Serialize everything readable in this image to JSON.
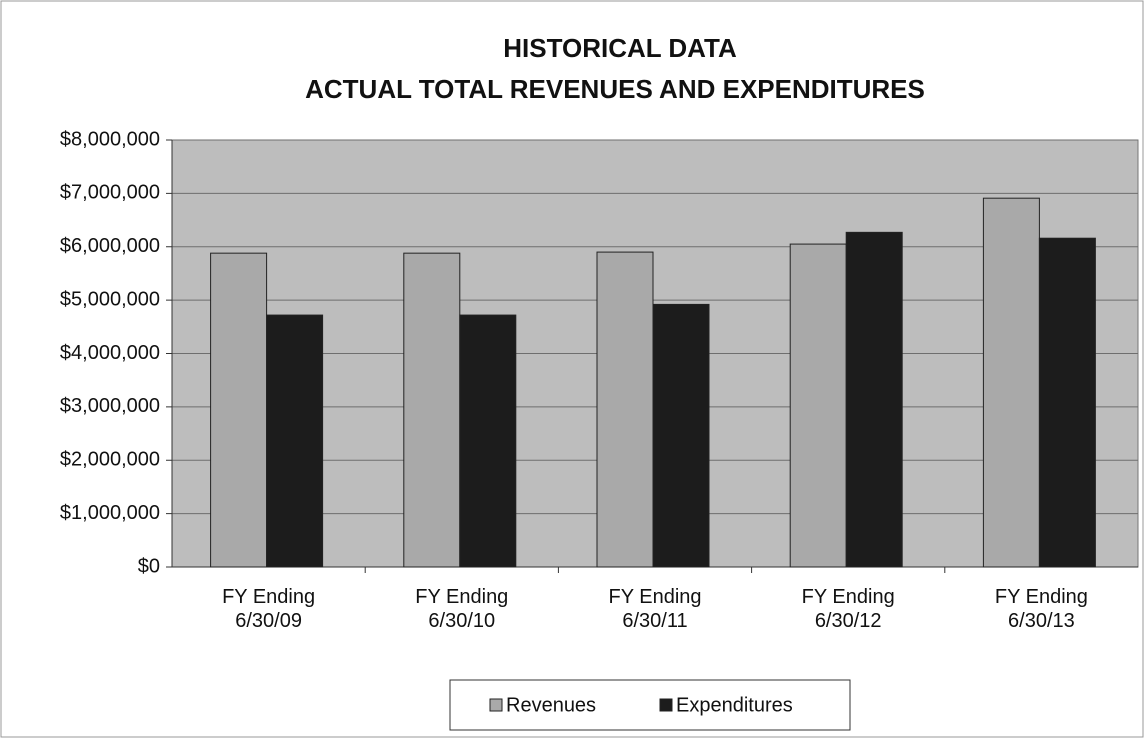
{
  "chart_data": {
    "type": "bar",
    "title": "HISTORICAL DATA",
    "subtitle": "ACTUAL TOTAL REVENUES AND EXPENDITURES",
    "categories": [
      "FY Ending 6/30/09",
      "FY Ending 6/30/10",
      "FY Ending 6/30/11",
      "FY Ending 6/30/12",
      "FY Ending 6/30/13"
    ],
    "series": [
      {
        "name": "Revenues",
        "color": "#a9a9a9",
        "values": [
          5880000,
          5880000,
          5900000,
          6050000,
          6910000
        ]
      },
      {
        "name": "Expenditures",
        "color": "#1c1c1c",
        "values": [
          4720000,
          4720000,
          4920000,
          6270000,
          6160000
        ]
      }
    ],
    "ylim": [
      0,
      8000000
    ],
    "yticks": [
      {
        "value": 0,
        "label": "$0"
      },
      {
        "value": 1000000,
        "label": "$1,000,000"
      },
      {
        "value": 2000000,
        "label": "$2,000,000"
      },
      {
        "value": 3000000,
        "label": "$3,000,000"
      },
      {
        "value": 4000000,
        "label": "$4,000,000"
      },
      {
        "value": 5000000,
        "label": "$5,000,000"
      },
      {
        "value": 6000000,
        "label": "$6,000,000"
      },
      {
        "value": 7000000,
        "label": "$7,000,000"
      },
      {
        "value": 8000000,
        "label": "$8,000,000"
      }
    ],
    "grid": true,
    "legend": "bottom"
  }
}
